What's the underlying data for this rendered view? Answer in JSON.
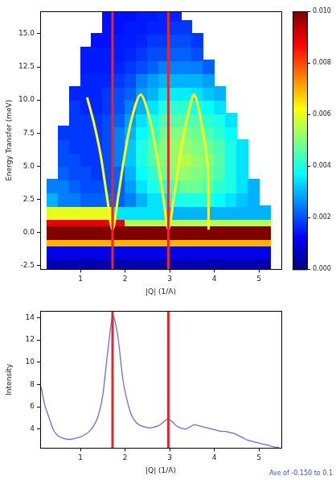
{
  "chart_data": [
    {
      "type": "heatmap",
      "xlabel": "|Q| (1/A)",
      "ylabel": "Energy Transfer (meV)",
      "xlim": [
        0.1,
        5.5
      ],
      "xticks": [
        1,
        2,
        3,
        4,
        5
      ],
      "ylim": [
        -2.8,
        16.7
      ],
      "yticks": [
        -2.5,
        {
          "value": 0,
          "label": "0.0"
        },
        2.5,
        {
          "value": 5,
          "label": "5.0"
        },
        7.5,
        {
          "value": 10,
          "label": "10.0"
        },
        12.5,
        {
          "value": 15,
          "label": "15.0"
        }
      ],
      "grid": false,
      "x_edges": [
        0.25,
        0.5,
        0.75,
        1.0,
        1.25,
        1.5,
        1.75,
        2.0,
        2.25,
        2.5,
        2.75,
        3.0,
        3.25,
        3.5,
        3.75,
        4.0,
        4.25,
        4.5,
        4.75,
        5.0,
        5.25
      ],
      "y_edges": [
        -2.8,
        -2,
        -1,
        -0.5,
        0.5,
        1,
        2,
        3,
        4,
        5,
        6,
        7,
        8,
        9,
        10,
        11,
        12,
        13,
        14,
        15,
        16,
        16.7
      ],
      "cells": [
        [
          0.0005,
          0.0005,
          0.0005,
          0.0005,
          0.0005,
          0.0005,
          0.0005,
          0.0005,
          0.0005,
          0.0005,
          0.0005,
          0.0005,
          0.0005,
          0.0005,
          0.0005,
          0.0005,
          0.0005,
          0.0005,
          0.0005,
          0.0005
        ],
        [
          0.001,
          0.001,
          0.001,
          0.001,
          0.001,
          0.001,
          0.001,
          0.001,
          0.001,
          0.001,
          0.001,
          0.001,
          0.001,
          0.001,
          0.001,
          0.001,
          0.001,
          0.001,
          0.001,
          0.001
        ],
        [
          0.007,
          0.007,
          0.007,
          0.007,
          0.007,
          0.007,
          0.007,
          0.007,
          0.007,
          0.007,
          0.007,
          0.007,
          0.007,
          0.007,
          0.007,
          0.007,
          0.007,
          0.007,
          0.007,
          0.007
        ],
        [
          0.013,
          0.013,
          0.013,
          0.013,
          0.013,
          0.013,
          0.013,
          0.013,
          0.013,
          0.013,
          0.013,
          0.013,
          0.013,
          0.013,
          0.013,
          0.013,
          0.013,
          0.013,
          0.013,
          0.013
        ],
        [
          0.009,
          0.009,
          0.009,
          0.009,
          0.009,
          0.009,
          0.009,
          0.0055,
          0.0055,
          0.0055,
          0.0055,
          0.0055,
          0.0055,
          0.0055,
          0.0055,
          0.0055,
          0.0055,
          0.0055,
          0.0055,
          0.0055
        ],
        [
          0.006,
          0.006,
          0.006,
          0.006,
          0.006,
          0.006,
          0.0035,
          0.0035,
          0.0035,
          0.0035,
          0.0035,
          0.003,
          0.003,
          0.003,
          0.003,
          0.003,
          0.003,
          0.003,
          0.003,
          0.003
        ],
        [
          0.003,
          0.0025,
          0.0025,
          0.0022,
          0.0022,
          0.0022,
          0.0022,
          0.0025,
          0.003,
          0.0035,
          0.0035,
          0.004,
          0.004,
          0.004,
          0.004,
          0.0038,
          0.0035,
          0.0032,
          0.003,
          null
        ],
        [
          0.0025,
          0.0025,
          0.0022,
          0.002,
          0.002,
          0.002,
          0.0022,
          0.0028,
          0.0035,
          0.004,
          0.0042,
          0.0045,
          0.0048,
          0.0048,
          0.0045,
          0.0042,
          0.004,
          0.0035,
          0.003,
          null
        ],
        [
          null,
          0.0022,
          0.002,
          0.002,
          0.0018,
          0.002,
          0.0022,
          0.003,
          0.0038,
          0.0042,
          0.0048,
          0.005,
          0.0052,
          0.005,
          0.0048,
          0.0045,
          0.004,
          0.0035,
          null,
          null
        ],
        [
          null,
          0.002,
          0.002,
          0.0018,
          0.0018,
          0.002,
          0.0025,
          0.0032,
          0.004,
          0.0045,
          0.005,
          0.0052,
          0.0055,
          0.0052,
          0.005,
          0.0046,
          0.004,
          0.0035,
          null,
          null
        ],
        [
          null,
          0.002,
          0.0018,
          0.0018,
          0.0018,
          0.002,
          0.0025,
          0.0032,
          0.004,
          0.0045,
          0.005,
          0.0052,
          0.0052,
          0.005,
          0.0048,
          0.0045,
          0.004,
          0.0035,
          null,
          null
        ],
        [
          null,
          0.0018,
          0.0018,
          0.0018,
          0.0018,
          0.002,
          0.0025,
          0.003,
          0.0038,
          0.0042,
          0.0048,
          0.005,
          0.005,
          0.0048,
          0.0045,
          0.0042,
          0.0038,
          null,
          null,
          null
        ],
        [
          null,
          null,
          0.0018,
          0.0018,
          0.0018,
          0.002,
          0.0022,
          0.0028,
          0.0035,
          0.004,
          0.0045,
          0.0046,
          0.0046,
          0.0045,
          0.0042,
          0.004,
          0.0035,
          null,
          null,
          null
        ],
        [
          null,
          null,
          0.0018,
          0.0016,
          0.0016,
          0.0018,
          0.002,
          0.0025,
          0.003,
          0.0035,
          0.004,
          0.0042,
          0.0042,
          0.004,
          0.0038,
          0.0035,
          null,
          null,
          null,
          null
        ],
        [
          null,
          null,
          0.0016,
          0.0016,
          0.0016,
          0.0018,
          0.002,
          0.0022,
          0.0028,
          0.003,
          0.0035,
          0.0036,
          0.0036,
          0.0035,
          0.0032,
          0.003,
          null,
          null,
          null,
          null
        ],
        [
          null,
          null,
          null,
          0.0016,
          0.0016,
          0.0016,
          0.0018,
          0.002,
          0.0025,
          0.0028,
          0.003,
          0.003,
          0.003,
          0.003,
          0.0028,
          null,
          null,
          null,
          null,
          null
        ],
        [
          null,
          null,
          null,
          0.0015,
          0.0015,
          0.0015,
          0.0016,
          0.0018,
          0.002,
          0.0022,
          0.0025,
          0.0025,
          0.0025,
          0.0025,
          0.0022,
          null,
          null,
          null,
          null,
          null
        ],
        [
          null,
          null,
          null,
          0.0015,
          0.0015,
          0.0015,
          0.0015,
          0.0016,
          0.0018,
          0.002,
          0.002,
          0.0022,
          0.0022,
          0.002,
          null,
          null,
          null,
          null,
          null,
          null
        ],
        [
          null,
          null,
          null,
          null,
          0.0014,
          0.0014,
          0.0015,
          0.0015,
          0.0016,
          0.0018,
          0.0018,
          0.002,
          0.002,
          0.0018,
          null,
          null,
          null,
          null,
          null,
          null
        ],
        [
          null,
          null,
          null,
          null,
          null,
          0.0014,
          0.0014,
          0.0015,
          0.0015,
          0.0016,
          0.0016,
          0.0018,
          0.0018,
          null,
          null,
          null,
          null,
          null,
          null,
          null
        ],
        [
          null,
          null,
          null,
          null,
          null,
          0.0014,
          0.0014,
          0.0014,
          0.0015,
          0.0015,
          0.0016,
          0.0016,
          null,
          null,
          null,
          null,
          null,
          null,
          null,
          null
        ]
      ],
      "colorbar": {
        "clim": [
          0,
          0.01
        ],
        "ticks": [
          {
            "value": 0,
            "label": "0.000"
          },
          {
            "value": 0.002,
            "label": "0.002"
          },
          {
            "value": 0.004,
            "label": "0.004"
          },
          {
            "value": 0.006,
            "label": "0.006"
          },
          {
            "value": 0.008,
            "label": "0.008"
          },
          {
            "value": 0.01,
            "label": "0.010"
          }
        ]
      },
      "series": [
        {
          "type": "line",
          "color": "#ffff1a",
          "x": [
            1.15,
            1.3,
            1.45,
            1.6,
            1.72,
            1.85,
            2.0,
            2.15,
            2.35,
            2.55,
            2.7,
            2.85,
            2.97,
            3.1,
            3.25,
            3.4,
            3.55,
            3.7,
            3.85,
            3.87
          ],
          "values": [
            10.2,
            8.3,
            5.9,
            2.6,
            0.2,
            2.8,
            6.0,
            8.6,
            10.4,
            8.6,
            6.0,
            2.8,
            0.2,
            2.8,
            6.2,
            8.8,
            10.4,
            8.4,
            5.0,
            0.2
          ]
        }
      ],
      "reference_lines": {
        "x": [
          1.72,
          2.97
        ],
        "color": "#e8262b"
      }
    },
    {
      "type": "line",
      "xlabel": "|Q| (1/A)",
      "ylabel": "Intensity",
      "xlim": [
        0.1,
        5.5
      ],
      "xticks": [
        1,
        2,
        3,
        4,
        5
      ],
      "ylim": [
        2.3,
        14.6
      ],
      "yticks": [
        4,
        6,
        8,
        10,
        12,
        14
      ],
      "grid": false,
      "color": "#6b6bef",
      "x": [
        0.12,
        0.2,
        0.3,
        0.4,
        0.5,
        0.6,
        0.7,
        0.8,
        0.9,
        1.0,
        1.1,
        1.2,
        1.3,
        1.4,
        1.5,
        1.6,
        1.72,
        1.78,
        1.85,
        1.95,
        2.05,
        2.15,
        2.25,
        2.35,
        2.45,
        2.55,
        2.65,
        2.75,
        2.85,
        2.95,
        3.05,
        3.15,
        3.25,
        3.35,
        3.45,
        3.55,
        3.65,
        3.75,
        3.85,
        3.95,
        4.05,
        4.15,
        4.25,
        4.35,
        4.45,
        4.55,
        4.65,
        4.75,
        4.85,
        4.95,
        5.05,
        5.15,
        5.25,
        5.35,
        5.45
      ],
      "values": [
        7.8,
        6.2,
        5.0,
        3.9,
        3.4,
        3.2,
        3.1,
        3.1,
        3.2,
        3.3,
        3.5,
        3.8,
        4.3,
        5.2,
        7.0,
        10.5,
        14.2,
        13.6,
        12.0,
        8.5,
        6.5,
        5.2,
        4.6,
        4.3,
        4.2,
        4.1,
        4.2,
        4.3,
        4.6,
        4.9,
        4.7,
        4.3,
        4.1,
        4.0,
        4.2,
        4.4,
        4.3,
        4.2,
        4.1,
        4.0,
        3.9,
        3.8,
        3.8,
        3.7,
        3.6,
        3.4,
        3.2,
        3.0,
        2.9,
        2.8,
        2.7,
        2.6,
        2.5,
        2.4,
        2.35
      ],
      "annotation": "Ave of -0.150 to 0.1",
      "reference_lines": {
        "x": [
          1.72,
          2.97
        ],
        "color": "#e8262b"
      }
    }
  ]
}
